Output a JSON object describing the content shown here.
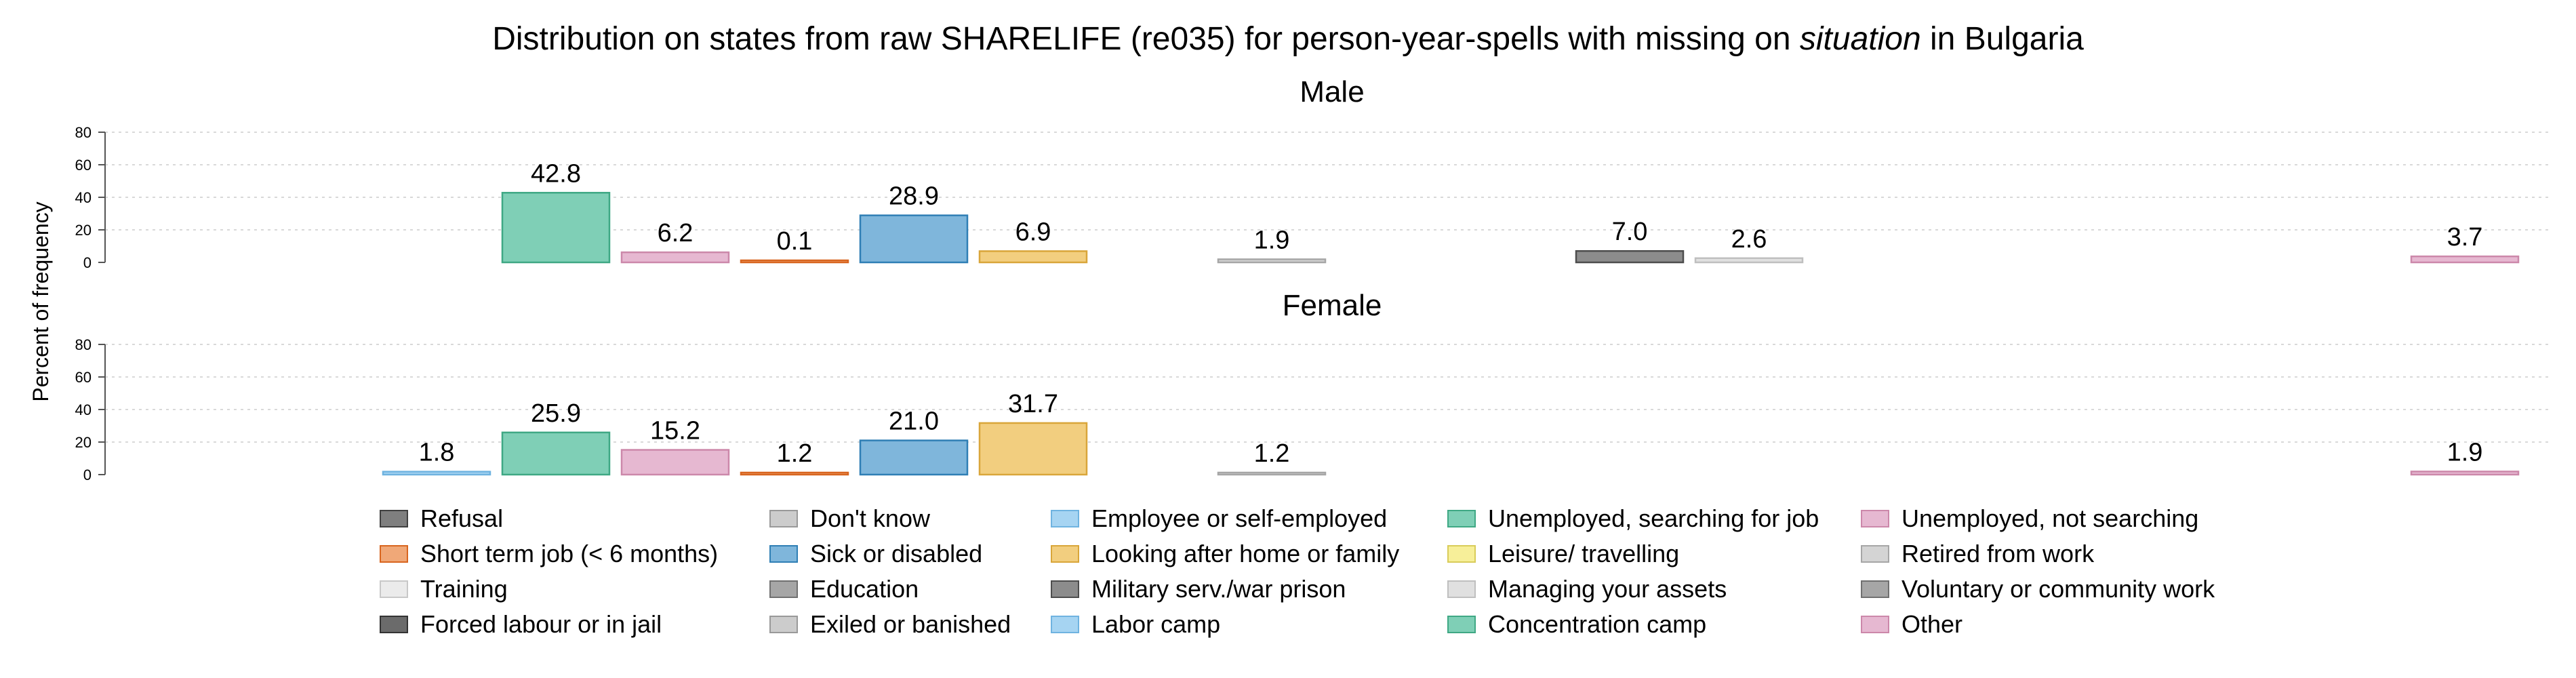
{
  "title_prefix": "Distribution on states from raw SHARELIFE (re035) for person-year-spells with missing on ",
  "title_emph": "situation",
  "title_suffix": " in Bulgaria",
  "chart_data": {
    "type": "bar",
    "ylabel": "Percent of frequency",
    "ylim": [
      0,
      80
    ],
    "yticks": [
      0,
      20,
      40,
      60,
      80
    ],
    "grid": true,
    "legend_position": "bottom",
    "categories": [
      "Refusal",
      "Don't know",
      "Employee or self-employed",
      "Unemployed, searching for job",
      "Unemployed, not searching",
      "Short term job (< 6 months)",
      "Sick or disabled",
      "Looking after home or family",
      "Leisure/ travelling",
      "Retired from work",
      "Training",
      "Education",
      "Military serv./war prison",
      "Managing your assets",
      "Voluntary or community work",
      "Forced labour or in jail",
      "Exiled or banished",
      "Labor camp",
      "Concentration camp",
      "Other"
    ],
    "colors": {
      "Refusal": "#7f7f7f",
      "Don't know": "#cccccc",
      "Employee or self-employed": "#a6d4f2",
      "Unemployed, searching for job": "#7fcfb6",
      "Unemployed, not searching": "#e6b8d1",
      "Short term job (< 6 months)": "#f0a878",
      "Sick or disabled": "#7fb6db",
      "Looking after home or family": "#f2ce7f",
      "Leisure/ travelling": "#f7ef99",
      "Retired from work": "#d4d4d4",
      "Training": "#ebebeb",
      "Education": "#a6a6a6",
      "Military serv./war prison": "#8c8c8c",
      "Managing your assets": "#e0e0e0",
      "Voluntary or community work": "#a6a6a6",
      "Forced labour or in jail": "#6b6b6b",
      "Exiled or banished": "#cccccc",
      "Labor camp": "#a6d4f2",
      "Concentration camp": "#7fcfb6",
      "Other": "#e6b8d1"
    },
    "borders": {
      "Refusal": "#404040",
      "Don't know": "#999999",
      "Employee or self-employed": "#6fb3e0",
      "Unemployed, searching for job": "#3fa884",
      "Unemployed, not searching": "#cc88aa",
      "Short term job (< 6 months)": "#d8651f",
      "Sick or disabled": "#2f7fb5",
      "Looking after home or family": "#d9a63a",
      "Leisure/ travelling": "#d9cc5a",
      "Retired from work": "#a6a6a6",
      "Training": "#c8c8c8",
      "Education": "#707070",
      "Military serv./war prison": "#4d4d4d",
      "Managing your assets": "#bfbfbf",
      "Voluntary or community work": "#707070",
      "Forced labour or in jail": "#333333",
      "Exiled or banished": "#999999",
      "Labor camp": "#6fb3e0",
      "Concentration camp": "#3fa884",
      "Other": "#cc88aa"
    },
    "bar_order": [
      "Employee or self-employed",
      "Unemployed, searching for job",
      "Unemployed, not searching",
      "Short term job (< 6 months)",
      "Sick or disabled",
      "Looking after home or family",
      "Leisure/ travelling",
      "Retired from work",
      "Training",
      "Education",
      "Military serv./war prison",
      "Managing your assets",
      "Voluntary or community work",
      "Forced labour or in jail",
      "Exiled or banished",
      "Labor camp",
      "Concentration camp",
      "Other"
    ],
    "panels": [
      {
        "name": "Male",
        "values": {
          "Unemployed, searching for job": 42.8,
          "Unemployed, not searching": 6.2,
          "Short term job (< 6 months)": 0.1,
          "Sick or disabled": 28.9,
          "Looking after home or family": 6.9,
          "Retired from work": 1.9,
          "Military serv./war prison": 7.0,
          "Managing your assets": 2.6,
          "Other": 3.7
        },
        "labels": {
          "Unemployed, searching for job": "42.8",
          "Unemployed, not searching": "6.2",
          "Short term job (< 6 months)": "0.1",
          "Sick or disabled": "28.9",
          "Looking after home or family": "6.9",
          "Retired from work": "1.9",
          "Military serv./war prison": "7.0",
          "Managing your assets": "2.6",
          "Other": "3.7"
        }
      },
      {
        "name": "Female",
        "values": {
          "Employee or self-employed": 1.8,
          "Unemployed, searching for job": 25.9,
          "Unemployed, not searching": 15.2,
          "Short term job (< 6 months)": 1.2,
          "Sick or disabled": 21.0,
          "Looking after home or family": 31.7,
          "Retired from work": 1.2,
          "Other": 1.9
        },
        "labels": {
          "Employee or self-employed": "1.8",
          "Unemployed, searching for job": "25.9",
          "Unemployed, not searching": "15.2",
          "Short term job (< 6 months)": "1.2",
          "Sick or disabled": "21.0",
          "Looking after home or family": "31.7",
          "Retired from work": "1.2",
          "Other": "1.9"
        }
      }
    ]
  }
}
